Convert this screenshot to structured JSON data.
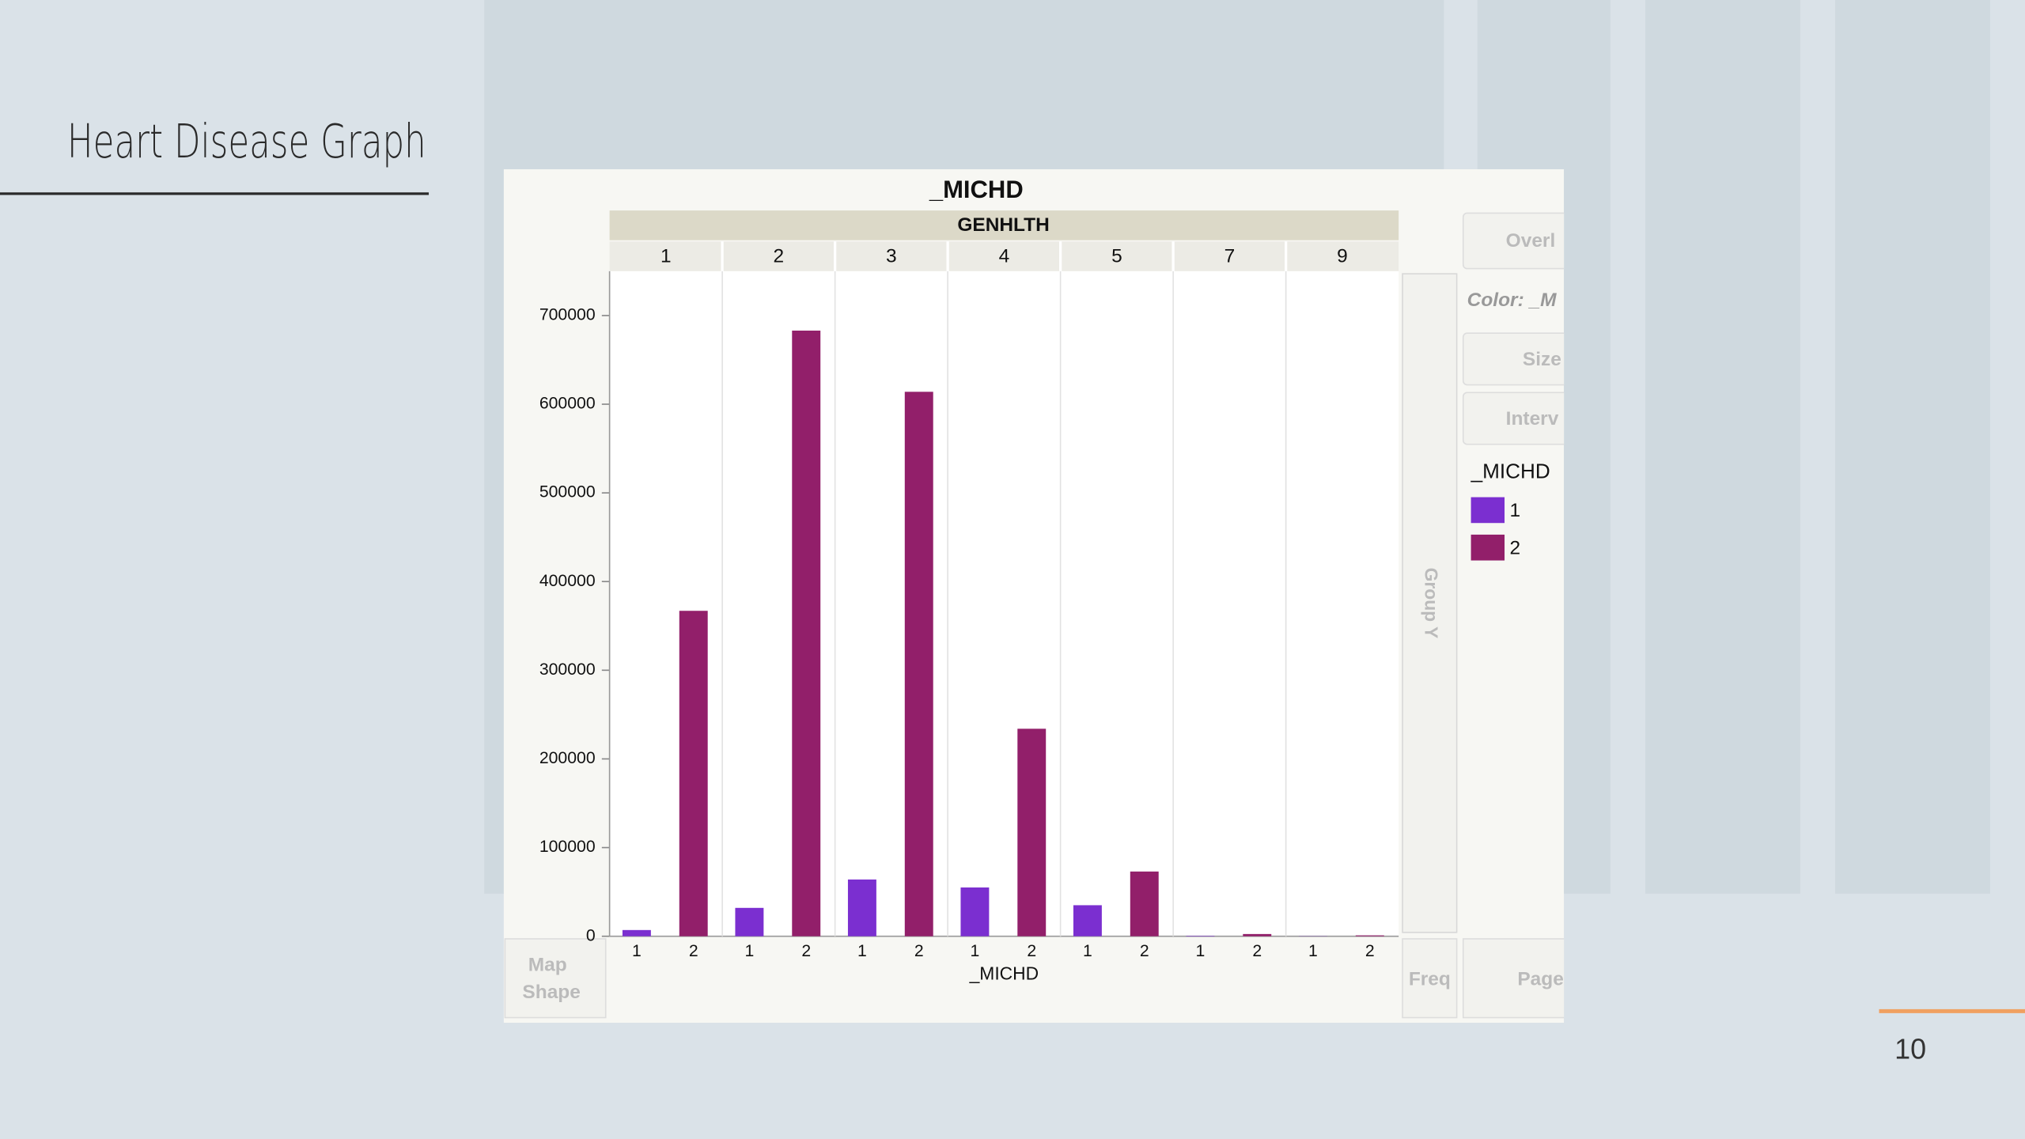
{
  "slide": {
    "title": "Heart Disease Graph",
    "page_number": "10"
  },
  "ui": {
    "overlay": "Overl",
    "color": "Color: _M",
    "size": "Size",
    "interval": "Interv",
    "group_y": "Group Y",
    "map_shape": [
      "Map",
      "Shape"
    ],
    "freq": "Freq",
    "page": "Page"
  },
  "chart_data": {
    "type": "bar",
    "title": "_MICHD",
    "group_label": "GENHLTH",
    "groups": [
      "1",
      "2",
      "3",
      "4",
      "5",
      "7",
      "9"
    ],
    "x_label": "_MICHD",
    "legend_title": "_MICHD",
    "series": [
      {
        "name": "1",
        "color": "#7b2fd0",
        "values": [
          7000,
          32000,
          64000,
          55000,
          35000,
          500,
          200
        ]
      },
      {
        "name": "2",
        "color": "#921f6a",
        "values": [
          367000,
          683000,
          614000,
          234000,
          73000,
          2500,
          1000
        ]
      }
    ],
    "ylim": [
      0,
      750000
    ],
    "yticks": [
      0,
      100000,
      200000,
      300000,
      400000,
      500000,
      600000,
      700000
    ]
  }
}
